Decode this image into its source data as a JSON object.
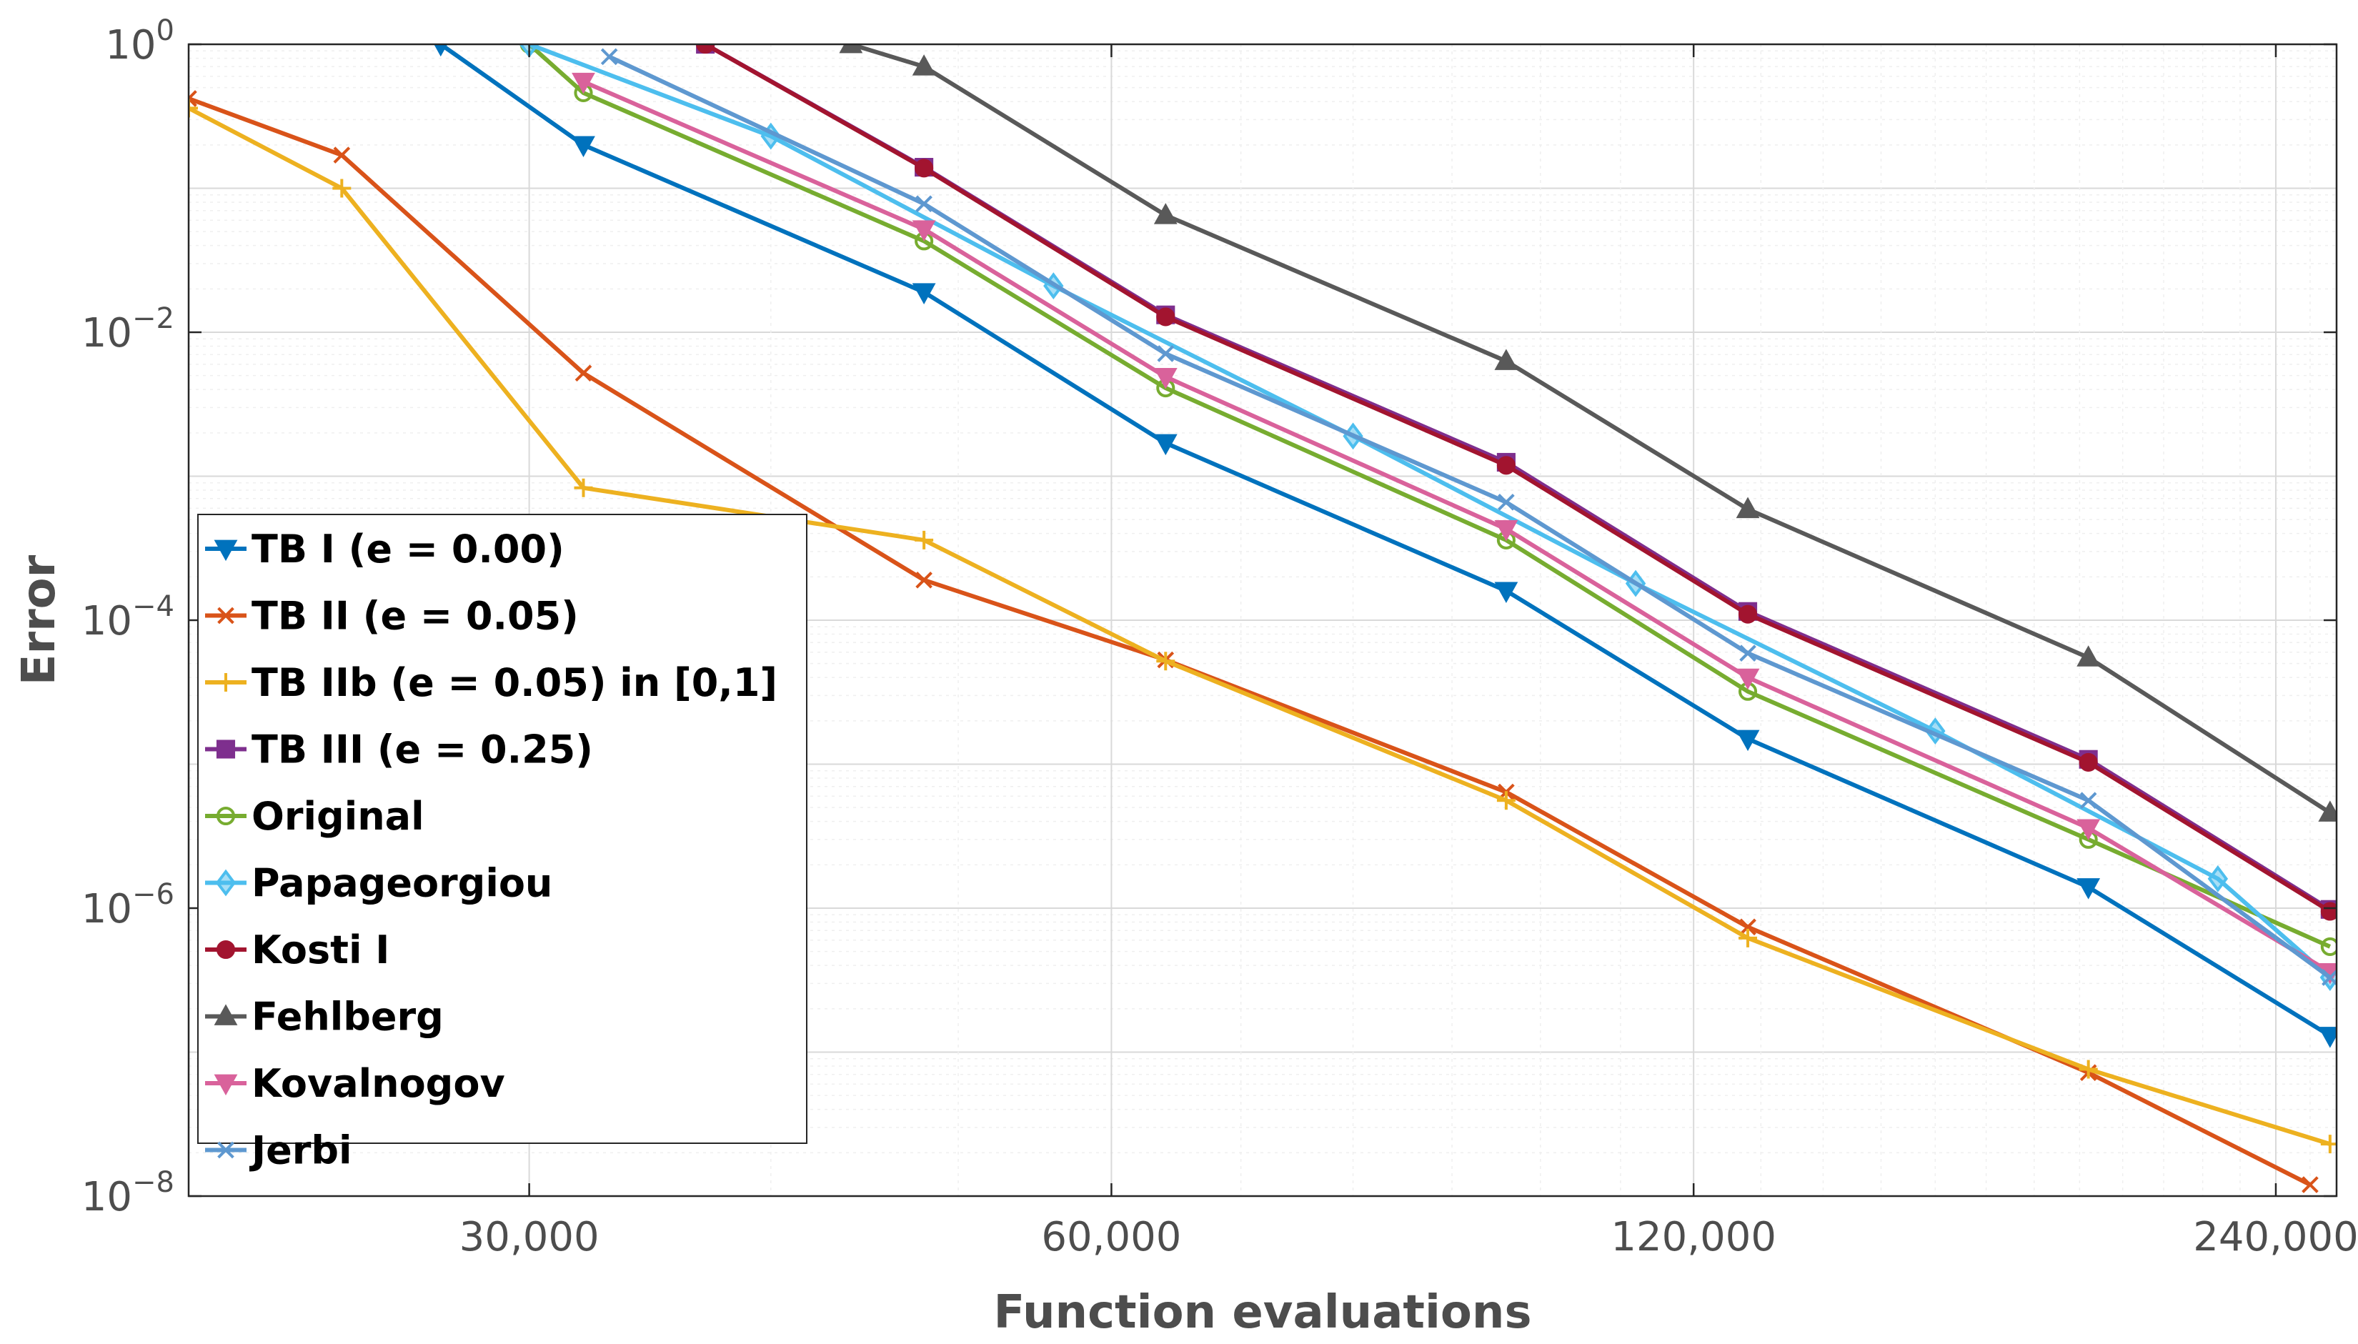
{
  "chart_data": {
    "type": "line",
    "title": "",
    "xlabel": "Function evaluations",
    "ylabel": "Error",
    "xscale": "log",
    "yscale": "log",
    "xlim": [
      20000,
      258000
    ],
    "ylim": [
      1e-08,
      1
    ],
    "grid": true,
    "legend_position": "bottom-left",
    "x_ticks": [
      {
        "value": 30000,
        "label": "30,000"
      },
      {
        "value": 60000,
        "label": "60,000"
      },
      {
        "value": 120000,
        "label": "120,000"
      },
      {
        "value": 240000,
        "label": "240,000"
      }
    ],
    "y_ticks": [
      {
        "value": 1,
        "base": "10",
        "exp": "0"
      },
      {
        "value": 0.01,
        "base": "10",
        "exp": "−2"
      },
      {
        "value": 0.0001,
        "base": "10",
        "exp": "−4"
      },
      {
        "value": 1e-06,
        "base": "10",
        "exp": "−6"
      },
      {
        "value": 1e-08,
        "base": "10",
        "exp": "−8"
      }
    ],
    "series": [
      {
        "name": "TB I (e = 0.00)",
        "color": "#0072BD",
        "marker": "triangle-down",
        "x": [
          27000,
          32000,
          48000,
          64000,
          96000,
          128000,
          192000,
          256000
        ],
        "y": [
          1.0,
          0.2,
          0.019,
          0.0017,
          0.00016,
          1.5e-05,
          1.4e-06,
          1.3e-07
        ]
      },
      {
        "name": "TB II (e = 0.05)",
        "color": "#D95319",
        "marker": "x",
        "x": [
          20000,
          24000,
          32000,
          48000,
          64000,
          96000,
          128000,
          192000,
          250000
        ],
        "y": [
          0.42,
          0.17,
          0.0052,
          0.00019,
          5.3e-05,
          6.4e-06,
          7.4e-07,
          7.2e-08,
          1.2e-08
        ]
      },
      {
        "name": "TB IIb (e = 0.05) in [0,1]",
        "color": "#EDB120",
        "marker": "plus",
        "x": [
          20000,
          24000,
          32000,
          48000,
          64000,
          96000,
          128000,
          192000,
          256000
        ],
        "y": [
          0.36,
          0.1,
          0.00083,
          0.00036,
          5.2e-05,
          5.6e-06,
          6.2e-07,
          7.6e-08,
          2.3e-08
        ]
      },
      {
        "name": "TB III (e = 0.25)",
        "color": "#7E2F8E",
        "marker": "square",
        "x": [
          37000,
          48000,
          64000,
          96000,
          128000,
          192000,
          256000
        ],
        "y": [
          1.0,
          0.14,
          0.0132,
          0.00125,
          0.000115,
          1.08e-05,
          9.8e-07
        ]
      },
      {
        "name": "Original",
        "color": "#77AC30",
        "marker": "circle",
        "x": [
          30000,
          32000,
          48000,
          64000,
          96000,
          128000,
          192000,
          256000
        ],
        "y": [
          1.0,
          0.46,
          0.043,
          0.0041,
          0.00036,
          3.2e-05,
          3e-06,
          5.4e-07
        ]
      },
      {
        "name": "Papageorgiou",
        "color": "#4DBEEE",
        "marker": "diamond",
        "x": [
          30000,
          40000,
          56000,
          80000,
          112000,
          160000,
          224000,
          256000
        ],
        "y": [
          1.0,
          0.23,
          0.021,
          0.0019,
          0.00018,
          1.7e-05,
          1.6e-06,
          3.3e-07
        ]
      },
      {
        "name": "Kosti I",
        "color": "#A2142F",
        "marker": "circle",
        "x": [
          37000,
          48000,
          64000,
          96000,
          128000,
          192000,
          256000
        ],
        "y": [
          1.0,
          0.138,
          0.0128,
          0.00119,
          0.00011,
          1.03e-05,
          9.5e-07
        ]
      },
      {
        "name": "Fehlberg",
        "color": "#595959",
        "marker": "triangle-up",
        "x": [
          44000,
          48000,
          64000,
          96000,
          128000,
          192000,
          256000
        ],
        "y": [
          1.0,
          0.7,
          0.065,
          0.0063,
          0.00059,
          5.5e-05,
          4.6e-06
        ]
      },
      {
        "name": "Kovalnogov",
        "color": "#D9629B",
        "marker": "triangle-down",
        "x": [
          32000,
          48000,
          64000,
          96000,
          128000,
          192000,
          256000
        ],
        "y": [
          0.55,
          0.052,
          0.0049,
          0.00043,
          4e-05,
          3.6e-06,
          3.6e-07
        ]
      },
      {
        "name": "Jerbi",
        "color": "#5E98D0",
        "marker": "x",
        "x": [
          33000,
          48000,
          64000,
          96000,
          128000,
          192000,
          256000
        ],
        "y": [
          0.82,
          0.078,
          0.0071,
          0.00066,
          5.9e-05,
          5.6e-06,
          3.3e-07
        ]
      }
    ]
  }
}
